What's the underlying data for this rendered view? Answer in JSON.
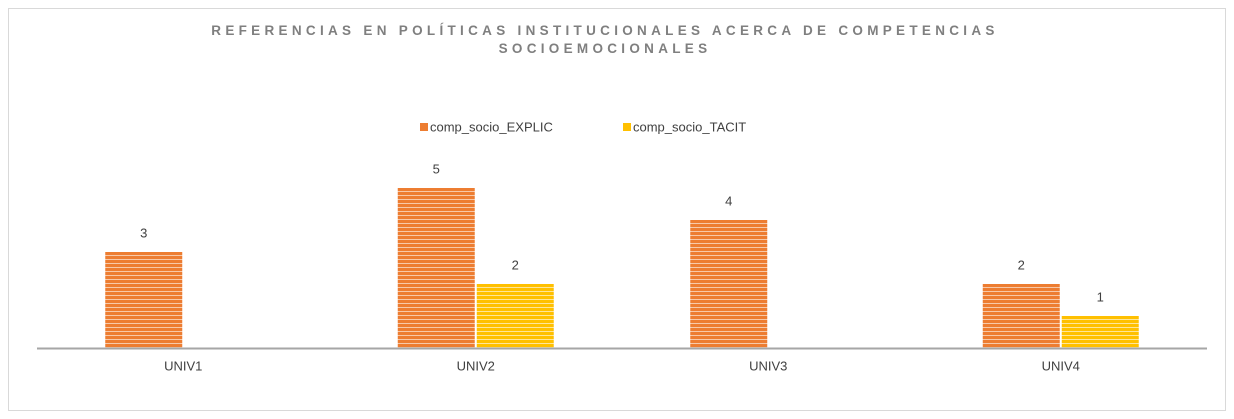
{
  "chart_data": {
    "type": "bar",
    "title": "REFERENCIAS EN POLÍTICAS INSTITUCIONALES ACERCA DE COMPETENCIAS SOCIOEMOCIONALES",
    "categories": [
      "UNIV1",
      "UNIV2",
      "UNIV3",
      "UNIV4"
    ],
    "series": [
      {
        "name": "comp_socio_EXPLIC",
        "color": "#ed7d31",
        "values": [
          3,
          5,
          4,
          2
        ]
      },
      {
        "name": "comp_socio_TACIT",
        "color": "#ffc000",
        "values": [
          null,
          2,
          null,
          1
        ]
      }
    ],
    "legend": "top"
  }
}
